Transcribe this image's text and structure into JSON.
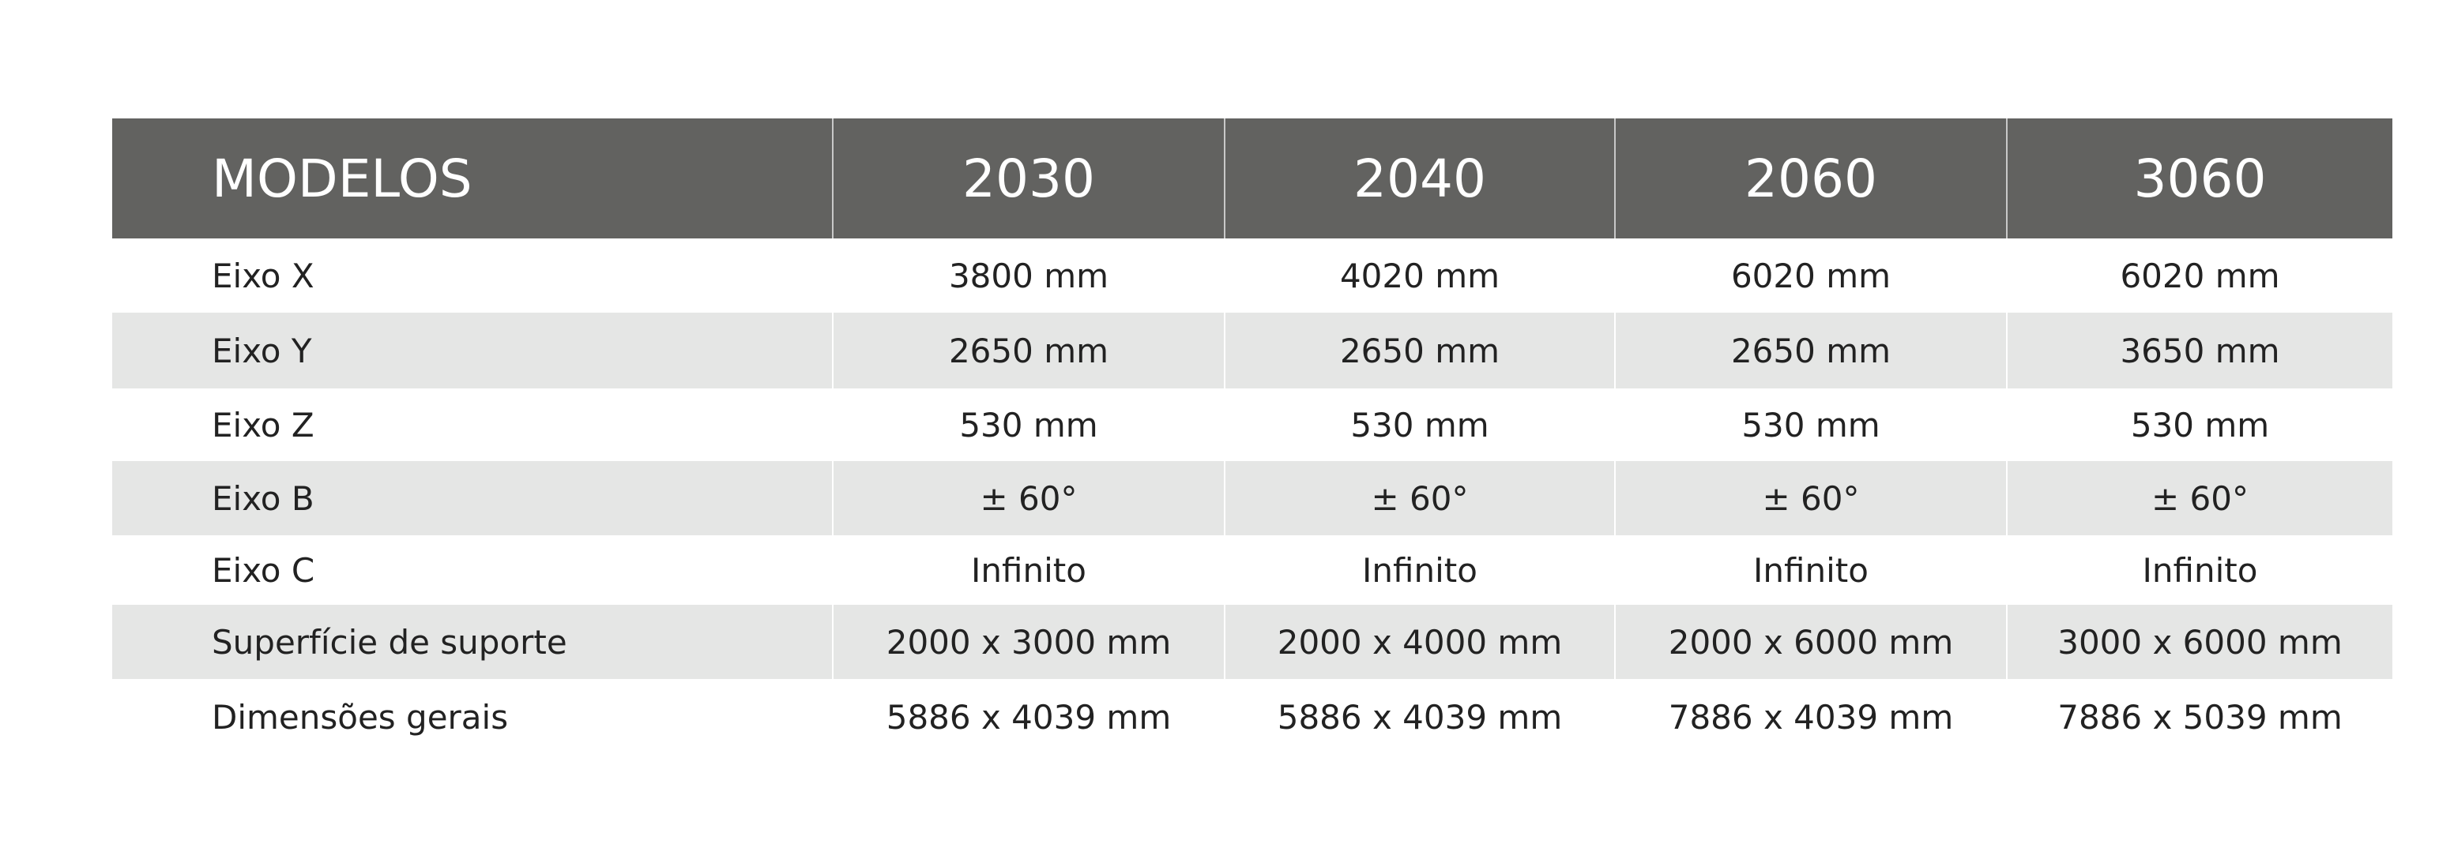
{
  "table": {
    "header": [
      "MODELOS",
      "2030",
      "2040",
      "2060",
      "3060"
    ],
    "rows": [
      [
        "Eixo X",
        "3800 mm",
        "4020 mm",
        "6020 mm",
        "6020 mm"
      ],
      [
        "Eixo Y",
        "2650 mm",
        "2650 mm",
        "2650 mm",
        "3650 mm"
      ],
      [
        "Eixo Z",
        "530 mm",
        "530 mm",
        "530 mm",
        "530 mm"
      ],
      [
        "Eixo B",
        "± 60°",
        "± 60°",
        "± 60°",
        "± 60°"
      ],
      [
        "Eixo C",
        "Infinito",
        "Infinito",
        "Infinito",
        "Infinito"
      ],
      [
        "Superfície de suporte",
        "2000 x 3000 mm",
        "2000 x 4000 mm",
        "2000 x 6000 mm",
        "3000 x 6000 mm"
      ],
      [
        "Dimensões gerais",
        "5886 x 4039 mm",
        "5886 x 4039 mm",
        "7886 x 4039 mm",
        "7886 x 5039 mm"
      ]
    ]
  }
}
